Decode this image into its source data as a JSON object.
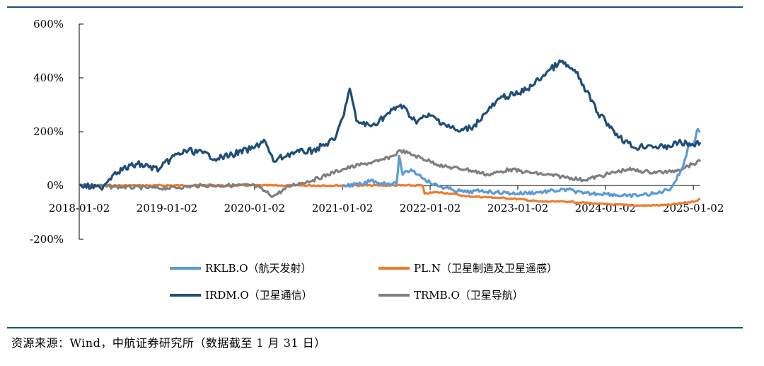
{
  "chart_data": {
    "type": "line",
    "title": "",
    "xlabel": "",
    "ylabel": "",
    "ylim": [
      -200,
      600
    ],
    "y_ticks": [
      -200,
      0,
      200,
      400,
      600
    ],
    "y_tick_labels": [
      "-200%",
      "0%",
      "200%",
      "400%",
      "600%"
    ],
    "x_range": [
      "2018-01-02",
      "2025-01-31"
    ],
    "x_tick_labels": [
      "2018-01-02",
      "2019-01-02",
      "2020-01-02",
      "2021-01-02",
      "2022-01-02",
      "2023-01-02",
      "2024-01-02",
      "2025-01-02"
    ],
    "grid": false,
    "legend_position": "bottom",
    "series": [
      {
        "name": "RKLB.O（航天发射）",
        "color": "#5b9bd5",
        "points": [
          [
            "2021-01-02",
            0
          ],
          [
            "2021-04-01",
            5
          ],
          [
            "2021-05-01",
            20
          ],
          [
            "2021-06-01",
            10
          ],
          [
            "2021-08-15",
            5
          ],
          [
            "2021-08-26",
            110
          ],
          [
            "2021-09-10",
            40
          ],
          [
            "2021-10-15",
            60
          ],
          [
            "2021-11-15",
            40
          ],
          [
            "2021-12-10",
            25
          ],
          [
            "2022-01-02",
            10
          ],
          [
            "2022-02-15",
            -5
          ],
          [
            "2022-04-01",
            -15
          ],
          [
            "2022-06-01",
            -25
          ],
          [
            "2022-08-01",
            -20
          ],
          [
            "2022-10-01",
            -25
          ],
          [
            "2023-01-02",
            -30
          ],
          [
            "2023-04-01",
            -25
          ],
          [
            "2023-06-01",
            -20
          ],
          [
            "2023-08-01",
            -15
          ],
          [
            "2023-10-01",
            -30
          ],
          [
            "2024-01-02",
            -30
          ],
          [
            "2024-04-01",
            -40
          ],
          [
            "2024-06-01",
            -35
          ],
          [
            "2024-08-01",
            -30
          ],
          [
            "2024-10-01",
            -10
          ],
          [
            "2024-11-15",
            60
          ],
          [
            "2024-12-15",
            150
          ],
          [
            "2025-01-05",
            160
          ],
          [
            "2025-01-20",
            210
          ],
          [
            "2025-01-31",
            200
          ]
        ]
      },
      {
        "name": "PL.N（卫星制造及卫星遥感）",
        "color": "#ed7d31",
        "points": [
          [
            "2018-01-02",
            0
          ],
          [
            "2021-01-02",
            0
          ],
          [
            "2021-06-01",
            0
          ],
          [
            "2021-12-01",
            0
          ],
          [
            "2021-12-10",
            -30
          ],
          [
            "2022-02-01",
            -25
          ],
          [
            "2022-04-01",
            -30
          ],
          [
            "2022-06-01",
            -40
          ],
          [
            "2022-10-01",
            -45
          ],
          [
            "2023-01-02",
            -50
          ],
          [
            "2023-04-01",
            -60
          ],
          [
            "2023-08-01",
            -60
          ],
          [
            "2024-01-02",
            -70
          ],
          [
            "2024-06-01",
            -75
          ],
          [
            "2024-10-01",
            -72
          ],
          [
            "2025-01-02",
            -60
          ],
          [
            "2025-01-31",
            -50
          ]
        ]
      },
      {
        "name": "IRDM.O（卫星通信）",
        "color": "#1f4e79",
        "points": [
          [
            "2018-01-02",
            0
          ],
          [
            "2018-04-01",
            -10
          ],
          [
            "2018-06-01",
            50
          ],
          [
            "2018-09-01",
            80
          ],
          [
            "2018-12-01",
            60
          ],
          [
            "2019-02-01",
            110
          ],
          [
            "2019-04-01",
            130
          ],
          [
            "2019-06-01",
            120
          ],
          [
            "2019-08-01",
            100
          ],
          [
            "2019-10-01",
            115
          ],
          [
            "2020-01-02",
            140
          ],
          [
            "2020-02-10",
            170
          ],
          [
            "2020-03-20",
            90
          ],
          [
            "2020-06-01",
            120
          ],
          [
            "2020-09-01",
            130
          ],
          [
            "2020-12-01",
            170
          ],
          [
            "2021-01-02",
            250
          ],
          [
            "2021-02-01",
            360
          ],
          [
            "2021-03-01",
            240
          ],
          [
            "2021-05-01",
            220
          ],
          [
            "2021-07-01",
            260
          ],
          [
            "2021-09-01",
            300
          ],
          [
            "2021-11-01",
            240
          ],
          [
            "2022-01-02",
            260
          ],
          [
            "2022-03-01",
            230
          ],
          [
            "2022-05-01",
            200
          ],
          [
            "2022-07-01",
            220
          ],
          [
            "2022-09-01",
            280
          ],
          [
            "2022-11-01",
            330
          ],
          [
            "2023-01-02",
            340
          ],
          [
            "2023-03-01",
            370
          ],
          [
            "2023-05-01",
            420
          ],
          [
            "2023-07-01",
            460
          ],
          [
            "2023-09-01",
            420
          ],
          [
            "2023-10-15",
            350
          ],
          [
            "2023-12-01",
            270
          ],
          [
            "2024-01-02",
            240
          ],
          [
            "2024-03-01",
            180
          ],
          [
            "2024-05-01",
            140
          ],
          [
            "2024-07-01",
            150
          ],
          [
            "2024-09-01",
            140
          ],
          [
            "2024-11-01",
            160
          ],
          [
            "2025-01-02",
            150
          ],
          [
            "2025-01-31",
            160
          ]
        ]
      },
      {
        "name": "TRMB.O（卫星导航）",
        "color": "#7f7f7f",
        "points": [
          [
            "2018-01-02",
            0
          ],
          [
            "2018-06-01",
            -5
          ],
          [
            "2019-01-02",
            -10
          ],
          [
            "2019-06-01",
            0
          ],
          [
            "2020-01-02",
            0
          ],
          [
            "2020-03-20",
            -40
          ],
          [
            "2020-06-01",
            0
          ],
          [
            "2020-09-01",
            20
          ],
          [
            "2021-01-02",
            60
          ],
          [
            "2021-04-01",
            80
          ],
          [
            "2021-06-01",
            90
          ],
          [
            "2021-08-01",
            110
          ],
          [
            "2021-09-01",
            130
          ],
          [
            "2021-11-01",
            110
          ],
          [
            "2022-01-02",
            90
          ],
          [
            "2022-03-01",
            70
          ],
          [
            "2022-06-01",
            60
          ],
          [
            "2022-09-01",
            40
          ],
          [
            "2022-12-01",
            60
          ],
          [
            "2023-02-01",
            50
          ],
          [
            "2023-05-01",
            40
          ],
          [
            "2023-08-01",
            30
          ],
          [
            "2023-10-01",
            20
          ],
          [
            "2024-01-02",
            40
          ],
          [
            "2024-04-01",
            60
          ],
          [
            "2024-07-01",
            50
          ],
          [
            "2024-10-01",
            50
          ],
          [
            "2025-01-02",
            80
          ],
          [
            "2025-01-31",
            90
          ]
        ]
      }
    ]
  },
  "source_note": "资源来源：Wind，中航证券研究所（数据截至 1 月 31 日）"
}
